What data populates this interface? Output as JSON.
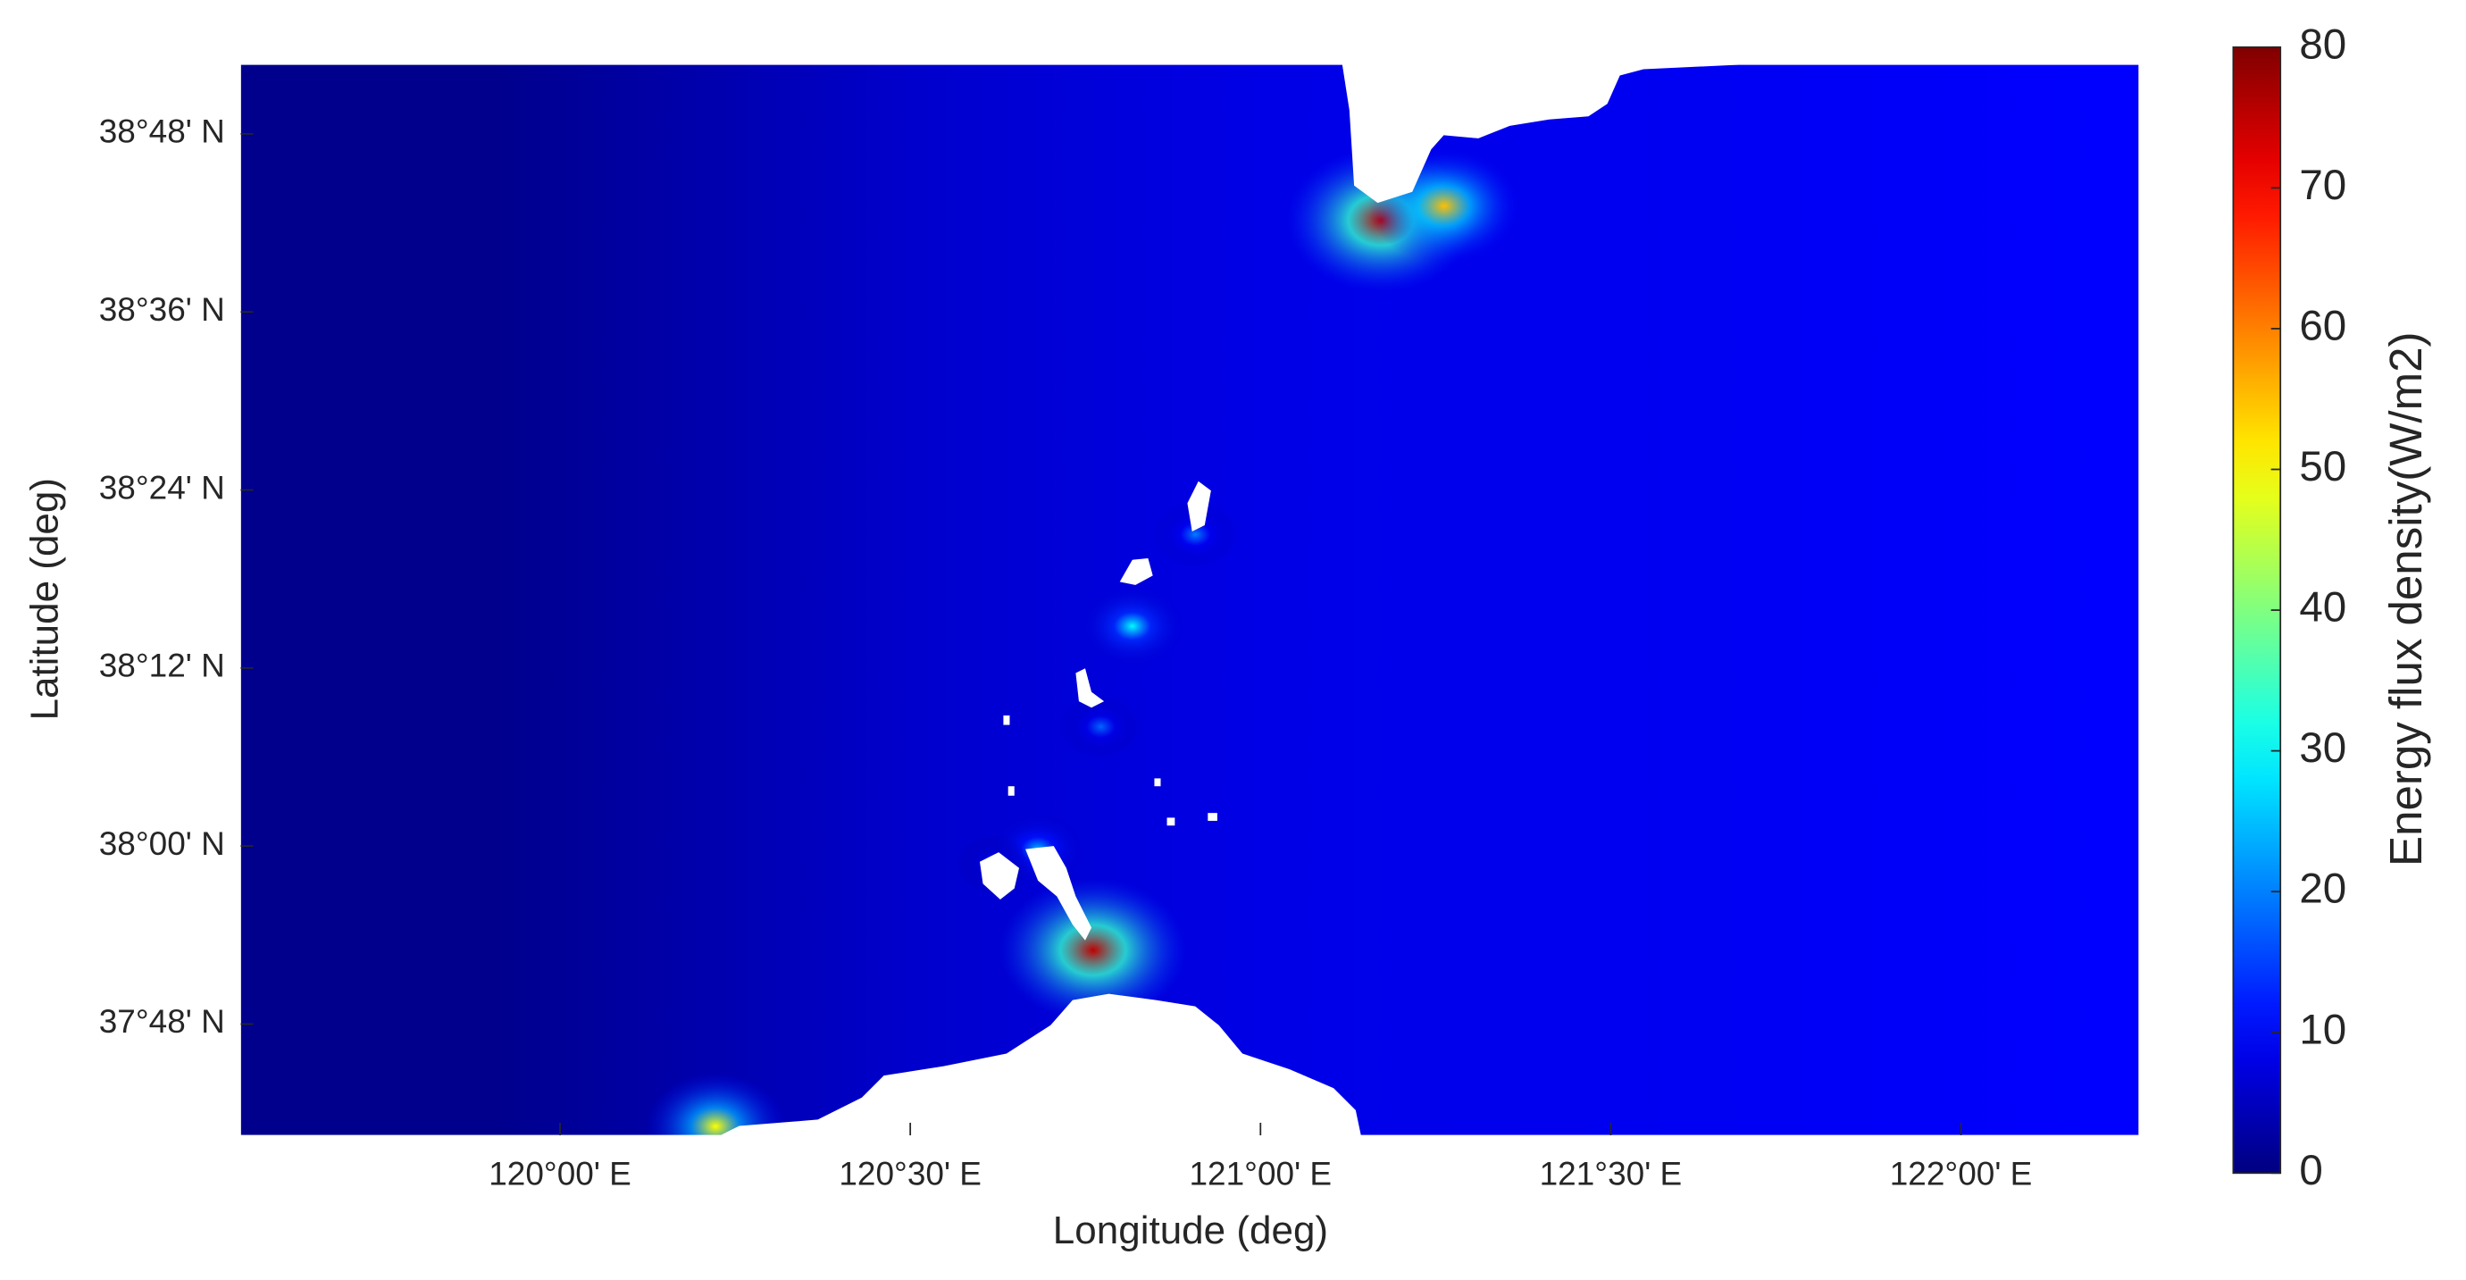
{
  "chart_data": {
    "type": "heatmap",
    "xlabel": "Longitude (deg)",
    "ylabel": "Latitude (deg)",
    "colorbar_label": "Energy flux density(W/m2)",
    "colormap": "jet",
    "xlim": [
      119.544,
      122.254
    ],
    "ylim": [
      37.675,
      38.878
    ],
    "xticks": [
      {
        "value": 120,
        "label": "120°00' E"
      },
      {
        "value": 120.5,
        "label": "120°30' E"
      },
      {
        "value": 121,
        "label": "121°00' E"
      },
      {
        "value": 121.5,
        "label": "121°30' E"
      },
      {
        "value": 122,
        "label": "122°00' E"
      }
    ],
    "yticks": [
      {
        "value": 37.8,
        "label": "37°48' N"
      },
      {
        "value": 38,
        "label": "38°00' N"
      },
      {
        "value": 38.2,
        "label": "38°12' N"
      },
      {
        "value": 38.4,
        "label": "38°24' N"
      },
      {
        "value": 38.6,
        "label": "38°36' N"
      },
      {
        "value": 38.8,
        "label": "38°48' N"
      }
    ],
    "clim": [
      0,
      80
    ],
    "cticks": [
      0,
      10,
      20,
      30,
      40,
      50,
      60,
      70,
      80
    ],
    "background": {
      "x": [
        119.9,
        120.5,
        121.0,
        122.254
      ],
      "values": [
        1,
        6,
        8,
        10
      ]
    },
    "points": {
      "x": [
        121.172,
        121.262,
        120.761,
        120.222,
        120.817,
        120.682,
        120.907,
        120.772,
        120.62
      ],
      "y": [
        38.703,
        38.719,
        37.883,
        37.685,
        38.247,
        37.996,
        38.35,
        38.134,
        37.98
      ],
      "values": [
        75,
        55,
        75,
        50,
        30,
        25,
        20,
        18,
        15
      ]
    }
  }
}
